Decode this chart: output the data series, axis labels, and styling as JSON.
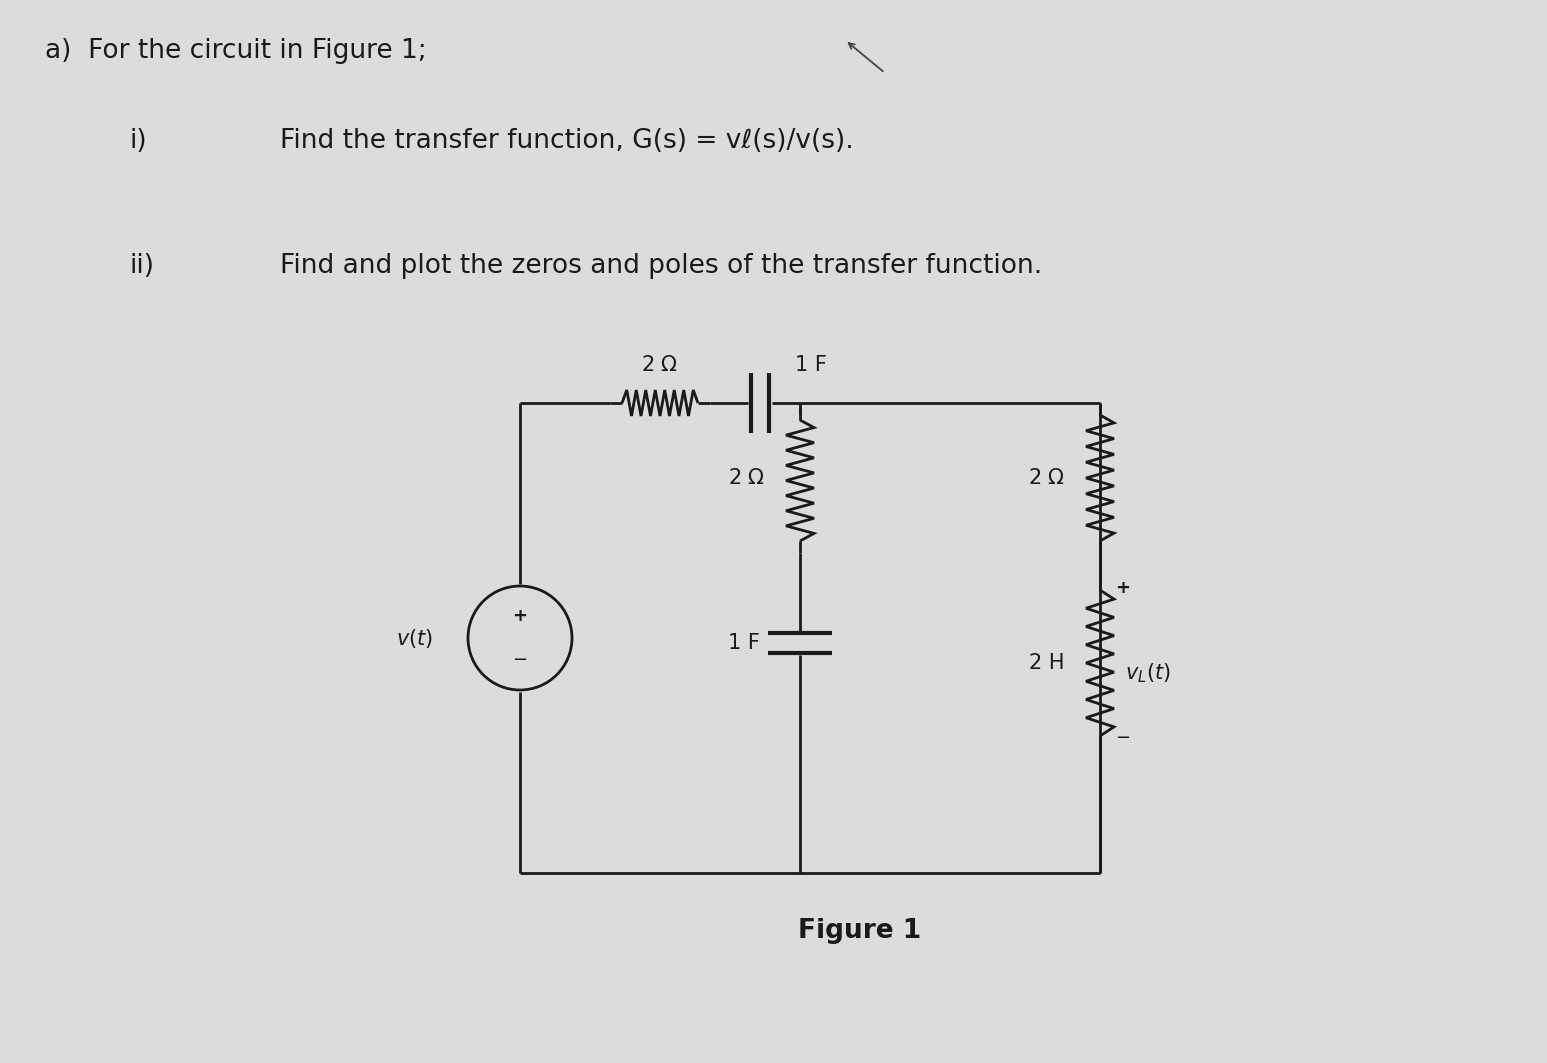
{
  "bg_color": "#dcdcdc",
  "text_color": "#1a1a1a",
  "title_a": "a)  For the circuit in Figure 1;",
  "item_i": "i)",
  "text_i": "Find the transfer function, G(s) = vℓ(s)/v(s).",
  "item_ii": "ii)",
  "text_ii": "Find and plot the zeros and poles of the transfer function.",
  "figure_label": "Figure 1",
  "font_size_title": 19,
  "font_size_body": 19,
  "font_size_circuit": 15,
  "line_color": "#1a1a1a",
  "component_color": "#1a1a1a",
  "circuit_lw": 2.0
}
